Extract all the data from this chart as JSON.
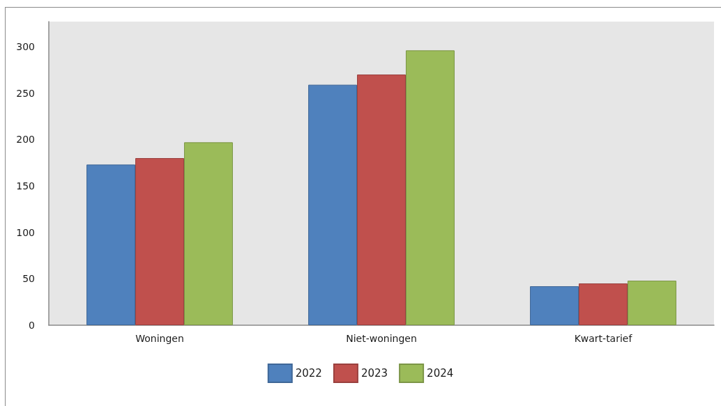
{
  "chart_data": {
    "type": "bar",
    "categories": [
      "Woningen",
      "Niet-woningen",
      "Kwart-tarief"
    ],
    "series": [
      {
        "name": "2022",
        "color": "#4f81bd",
        "values": [
          173,
          259,
          42
        ]
      },
      {
        "name": "2023",
        "color": "#c0504d",
        "values": [
          180,
          270,
          45
        ]
      },
      {
        "name": "2024",
        "color": "#9bbb59",
        "values": [
          197,
          296,
          48
        ]
      }
    ],
    "ylim": [
      0,
      327
    ],
    "yticks": [
      0,
      50,
      100,
      150,
      200,
      250,
      300
    ],
    "grid": false,
    "legend": "bottom"
  }
}
